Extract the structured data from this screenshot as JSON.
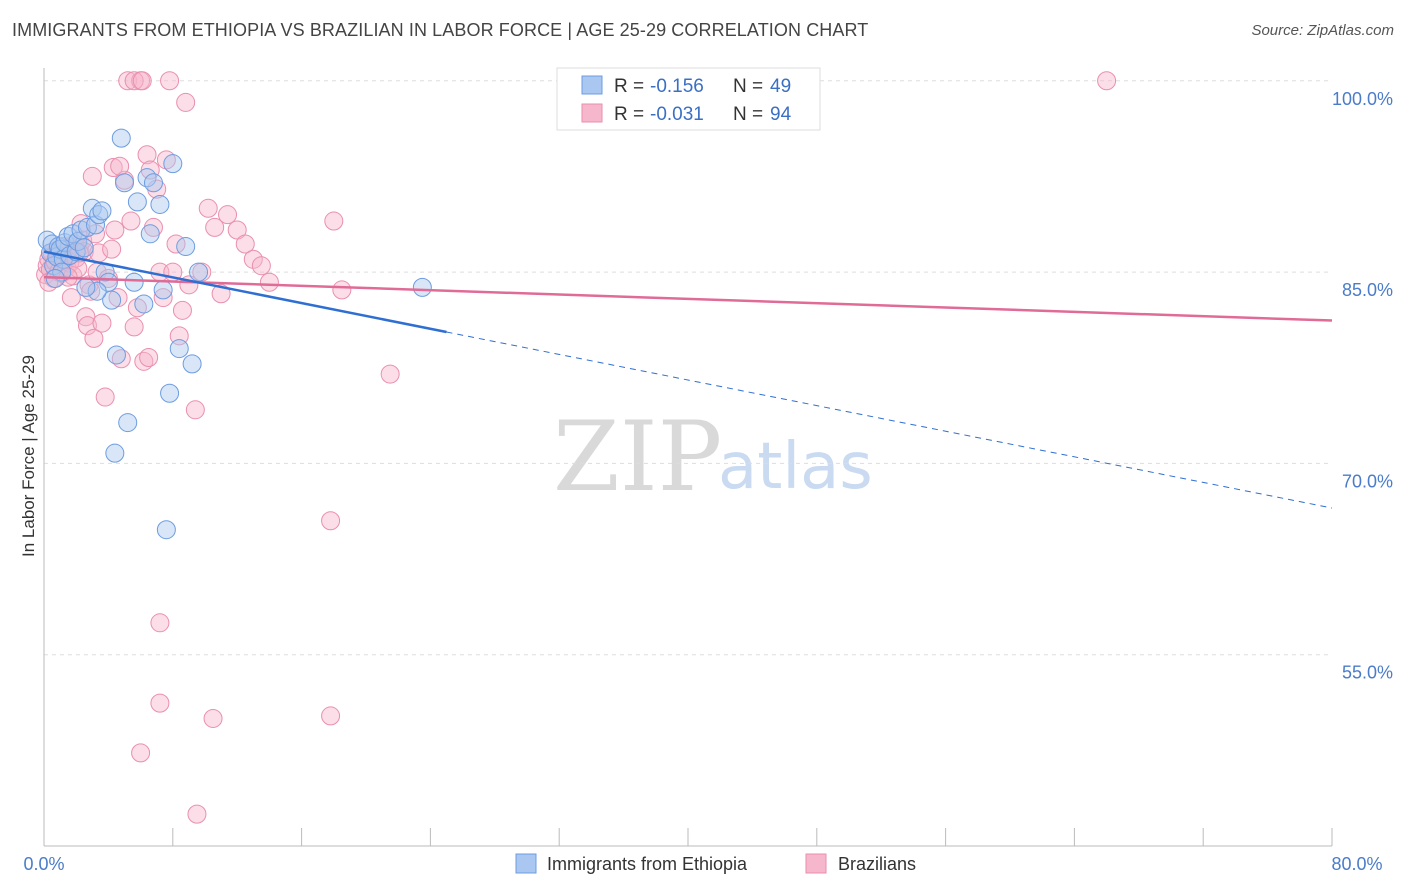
{
  "title": "IMMIGRANTS FROM ETHIOPIA VS BRAZILIAN IN LABOR FORCE | AGE 25-29 CORRELATION CHART",
  "source": "Source: ZipAtlas.com",
  "watermark": {
    "zip": "ZIP",
    "atlas": "atlas"
  },
  "legend": {
    "series1": {
      "r_label": "R =",
      "r_value": "-0.156",
      "n_label": "N =",
      "n_value": "49"
    },
    "series2": {
      "r_label": "R =",
      "r_value": "-0.031",
      "n_label": "N =",
      "n_value": "94"
    }
  },
  "bottom_legend": {
    "series1": "Immigrants from Ethiopia",
    "series2": "Brazilians"
  },
  "colors": {
    "blue_fill": "#a9c7f0",
    "blue_stroke": "#6d9ce0",
    "blue_line": "#2f6fd1",
    "pink_fill": "#f6b6cb",
    "pink_stroke": "#ea8fae",
    "pink_line": "#e06b97",
    "axis_text": "#4a7cc9",
    "grid": "#dddddd"
  },
  "chart_data": {
    "type": "scatter",
    "title": "IMMIGRANTS FROM ETHIOPIA VS BRAZILIAN IN LABOR FORCE | AGE 25-29 CORRELATION CHART",
    "xlabel": "",
    "ylabel": "In Labor Force | Age 25-29",
    "xlim": [
      0,
      80
    ],
    "ylim": [
      40,
      101
    ],
    "x_tick_labels": [
      "0.0%",
      "80.0%"
    ],
    "y_ticks": [
      100,
      85,
      70,
      55
    ],
    "y_tick_labels": [
      "100.0%",
      "85.0%",
      "70.0%",
      "55.0%"
    ],
    "series": [
      {
        "name": "Immigrants from Ethiopia",
        "color": "#a9c7f0",
        "R": -0.156,
        "N": 49,
        "trend": {
          "x0": 0,
          "y0": 86.6,
          "x1": 25,
          "y1": 80.3,
          "x_dash_end": 80,
          "y_dash_end": 66.5
        },
        "points": [
          [
            0.2,
            87.5
          ],
          [
            0.4,
            86.5
          ],
          [
            0.5,
            87.2
          ],
          [
            0.6,
            85.5
          ],
          [
            0.8,
            86.2
          ],
          [
            0.9,
            87.0
          ],
          [
            1.0,
            86.8
          ],
          [
            1.2,
            86.0
          ],
          [
            1.3,
            87.3
          ],
          [
            1.5,
            87.8
          ],
          [
            1.6,
            86.3
          ],
          [
            1.8,
            88.0
          ],
          [
            2.0,
            86.6
          ],
          [
            2.1,
            87.4
          ],
          [
            2.3,
            88.3
          ],
          [
            2.5,
            86.9
          ],
          [
            2.7,
            88.5
          ],
          [
            3.0,
            90.0
          ],
          [
            3.2,
            88.7
          ],
          [
            3.4,
            89.5
          ],
          [
            3.6,
            89.8
          ],
          [
            3.8,
            85.0
          ],
          [
            4.0,
            84.2
          ],
          [
            4.2,
            82.8
          ],
          [
            4.5,
            78.5
          ],
          [
            4.8,
            95.5
          ],
          [
            5.0,
            92.0
          ],
          [
            5.2,
            73.2
          ],
          [
            5.6,
            84.2
          ],
          [
            5.8,
            90.5
          ],
          [
            6.2,
            82.5
          ],
          [
            6.4,
            92.4
          ],
          [
            6.6,
            88.0
          ],
          [
            6.8,
            92.0
          ],
          [
            7.2,
            90.3
          ],
          [
            7.4,
            83.6
          ],
          [
            7.6,
            64.8
          ],
          [
            7.8,
            75.5
          ],
          [
            8.0,
            93.5
          ],
          [
            8.4,
            79.0
          ],
          [
            8.8,
            87.0
          ],
          [
            9.2,
            77.8
          ],
          [
            9.6,
            85.0
          ],
          [
            3.3,
            83.5
          ],
          [
            4.4,
            70.8
          ],
          [
            2.6,
            83.8
          ],
          [
            1.1,
            85.0
          ],
          [
            0.7,
            84.5
          ],
          [
            23.5,
            83.8
          ]
        ]
      },
      {
        "name": "Brazilians",
        "color": "#f6b6cb",
        "R": -0.031,
        "N": 94,
        "trend": {
          "x0": 0,
          "y0": 84.6,
          "x1": 80,
          "y1": 81.2
        },
        "points": [
          [
            0.1,
            84.8
          ],
          [
            0.2,
            85.5
          ],
          [
            0.3,
            86.0
          ],
          [
            0.4,
            85.2
          ],
          [
            0.5,
            86.5
          ],
          [
            0.6,
            84.5
          ],
          [
            0.7,
            85.8
          ],
          [
            0.8,
            86.7
          ],
          [
            0.9,
            85.0
          ],
          [
            1.0,
            86.2
          ],
          [
            1.1,
            84.9
          ],
          [
            1.2,
            87.0
          ],
          [
            1.3,
            86.0
          ],
          [
            1.4,
            85.4
          ],
          [
            1.5,
            86.8
          ],
          [
            1.6,
            85.7
          ],
          [
            1.7,
            86.4
          ],
          [
            1.8,
            84.7
          ],
          [
            1.9,
            87.2
          ],
          [
            2.0,
            86.1
          ],
          [
            2.1,
            85.3
          ],
          [
            2.2,
            86.9
          ],
          [
            2.3,
            88.8
          ],
          [
            2.4,
            87.5
          ],
          [
            2.5,
            86.6
          ],
          [
            2.6,
            81.5
          ],
          [
            2.7,
            80.8
          ],
          [
            2.8,
            84.0
          ],
          [
            2.9,
            83.5
          ],
          [
            3.0,
            92.5
          ],
          [
            3.1,
            79.8
          ],
          [
            3.2,
            88.0
          ],
          [
            3.3,
            85.0
          ],
          [
            3.4,
            86.5
          ],
          [
            3.6,
            81.0
          ],
          [
            3.8,
            75.2
          ],
          [
            4.0,
            84.5
          ],
          [
            4.2,
            86.8
          ],
          [
            4.4,
            88.3
          ],
          [
            4.6,
            83.0
          ],
          [
            4.8,
            78.2
          ],
          [
            5.0,
            92.2
          ],
          [
            5.2,
            100.0
          ],
          [
            5.4,
            89.0
          ],
          [
            5.6,
            80.7
          ],
          [
            5.8,
            82.2
          ],
          [
            6.0,
            100.0
          ],
          [
            6.2,
            78.0
          ],
          [
            6.4,
            94.2
          ],
          [
            6.6,
            93.0
          ],
          [
            6.8,
            88.5
          ],
          [
            7.0,
            91.5
          ],
          [
            7.2,
            85.0
          ],
          [
            7.4,
            83.0
          ],
          [
            7.6,
            93.8
          ],
          [
            7.8,
            100.0
          ],
          [
            8.0,
            85.0
          ],
          [
            8.2,
            87.2
          ],
          [
            8.4,
            80.0
          ],
          [
            8.6,
            82.0
          ],
          [
            8.8,
            98.3
          ],
          [
            9.0,
            84.0
          ],
          [
            9.4,
            74.2
          ],
          [
            9.8,
            85.0
          ],
          [
            10.2,
            90.0
          ],
          [
            10.6,
            88.5
          ],
          [
            11.0,
            83.3
          ],
          [
            11.4,
            89.5
          ],
          [
            12.0,
            88.3
          ],
          [
            12.5,
            87.2
          ],
          [
            13.0,
            86.0
          ],
          [
            13.5,
            85.5
          ],
          [
            14.0,
            84.2
          ],
          [
            18.0,
            89.0
          ],
          [
            18.5,
            83.6
          ],
          [
            21.5,
            77.0
          ],
          [
            17.8,
            65.5
          ],
          [
            17.8,
            50.2
          ],
          [
            7.2,
            57.5
          ],
          [
            7.2,
            51.2
          ],
          [
            6.0,
            47.3
          ],
          [
            9.5,
            42.5
          ],
          [
            10.5,
            50.0
          ],
          [
            6.5,
            78.3
          ],
          [
            4.3,
            93.2
          ],
          [
            5.6,
            100.0
          ],
          [
            66.0,
            100.0
          ],
          [
            6.1,
            100.0
          ],
          [
            4.7,
            93.3
          ],
          [
            2.2,
            86.5
          ],
          [
            1.5,
            84.6
          ],
          [
            0.3,
            84.2
          ],
          [
            0.9,
            86.3
          ],
          [
            1.7,
            83.0
          ]
        ]
      }
    ]
  }
}
